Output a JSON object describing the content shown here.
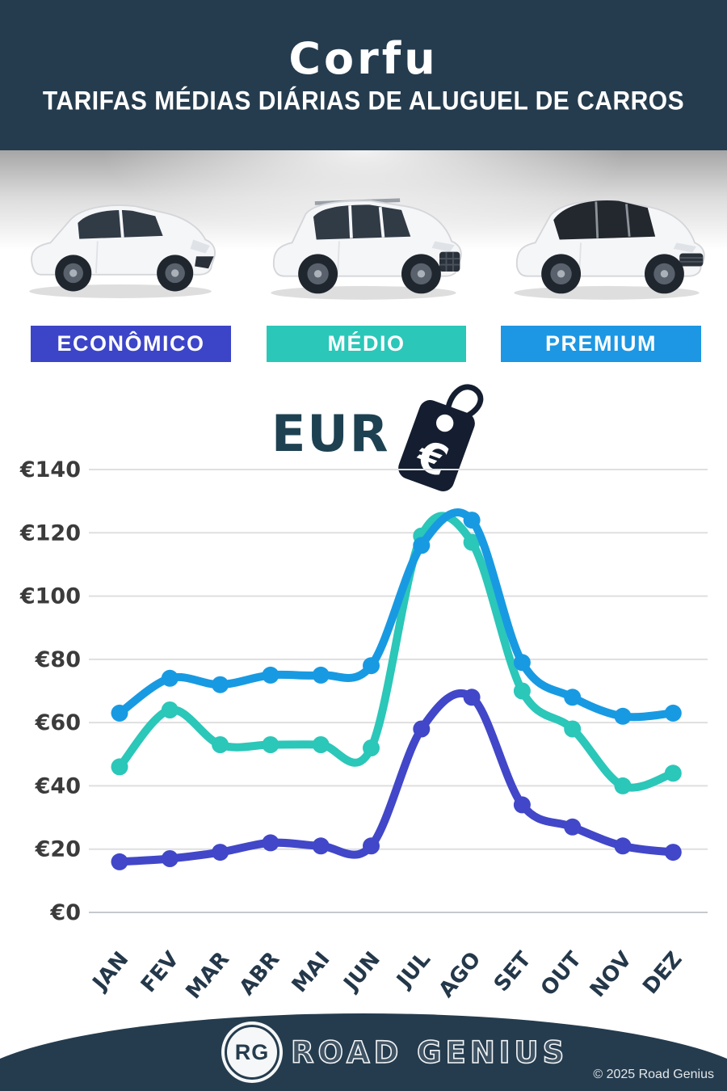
{
  "header": {
    "title": "Corfu",
    "subtitle": "TARIFAS MÉDIAS DIÁRIAS DE ALUGUEL DE CARROS",
    "bg_color": "#253c4e"
  },
  "categories": {
    "economy": {
      "label": "ECONÔMICO",
      "color": "#3c45c8"
    },
    "mid": {
      "label": "MÉDIO",
      "color": "#2bc7b9"
    },
    "premium": {
      "label": "PREMIUM",
      "color": "#1d97e3"
    }
  },
  "currency": {
    "label": "EUR",
    "tag_symbol": "€",
    "tag_color": "#141e30"
  },
  "chart_data": {
    "type": "line",
    "categories": [
      "JAN",
      "FEV",
      "MAR",
      "ABR",
      "MAI",
      "JUN",
      "JUL",
      "AGO",
      "SET",
      "OUT",
      "NOV",
      "DEZ"
    ],
    "series": [
      {
        "name": "MÉDIO",
        "color": "#2bc7b9",
        "values": [
          46,
          64,
          53,
          53,
          53,
          52,
          119,
          117,
          70,
          58,
          40,
          44
        ]
      },
      {
        "name": "PREMIUM",
        "color": "#189ae2",
        "values": [
          63,
          74,
          72,
          75,
          75,
          78,
          116,
          124,
          79,
          68,
          62,
          63
        ]
      },
      {
        "name": "ECONÔMICO",
        "color": "#4147c8",
        "values": [
          16,
          17,
          19,
          22,
          21,
          21,
          58,
          68,
          34,
          27,
          21,
          19
        ]
      }
    ],
    "ylabel_prefix": "€",
    "yticks": [
      0,
      20,
      40,
      60,
      80,
      100,
      120,
      140
    ],
    "ylim": [
      0,
      140
    ],
    "grid": true,
    "grid_color": "#dfdfdf",
    "legend": "none"
  },
  "footer": {
    "logo_initials": "RG",
    "brand": "ROAD GENIUS",
    "copyright": "© 2025 Road Genius",
    "bg_color": "#253c4e"
  }
}
